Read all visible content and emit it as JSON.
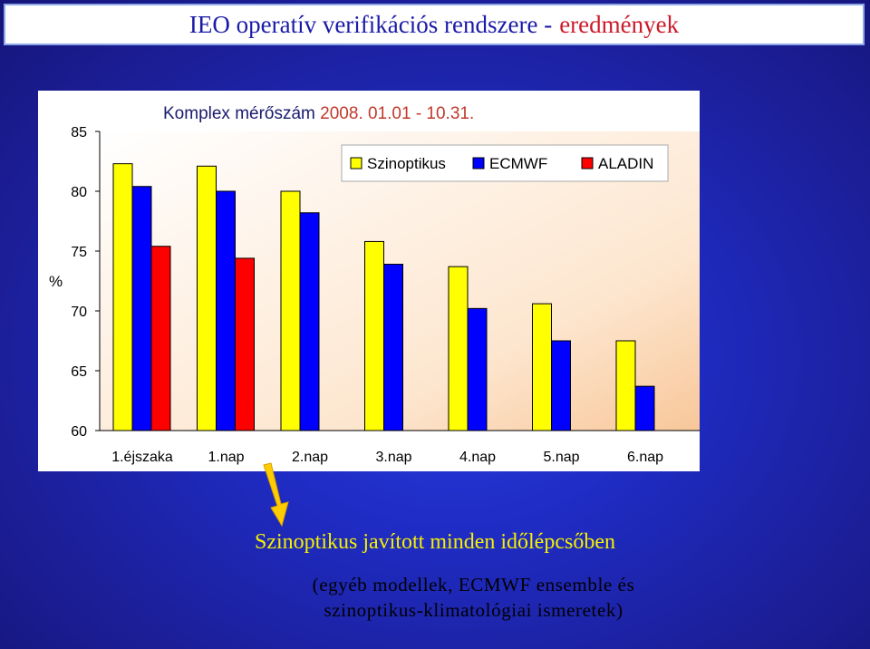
{
  "slide": {
    "title_main": "IEO operatív verifikációs rendszere -",
    "title_accent": "eredmények",
    "conclusion": "Szinoptikus javított minden időlépcsőben",
    "note_line1": "(egyéb modellek, ECMWF ensemble és",
    "note_line2": "szinoptikus-klimatológiai ismeretek)"
  },
  "chart_data": {
    "type": "bar",
    "title": "Komplex mérőszám 2008. 01.01 - 10.31.",
    "title_colors": {
      "text": "#1a1a6e",
      "dates": "#c0392b"
    },
    "ylabel": "%",
    "xlabel": "",
    "ylim": [
      60,
      85
    ],
    "yticks": [
      60,
      65,
      70,
      75,
      80,
      85
    ],
    "grid": false,
    "legend_position": "top-right",
    "categories": [
      "1.éjszaka",
      "1.nap",
      "2.nap",
      "3.nap",
      "4.nap",
      "5.nap",
      "6.nap"
    ],
    "series": [
      {
        "name": "Szinoptikus",
        "color": "#ffff00",
        "values": [
          82.3,
          82.1,
          80.0,
          75.8,
          73.7,
          70.6,
          67.5
        ]
      },
      {
        "name": "ECMWF",
        "color": "#0000ff",
        "values": [
          80.4,
          80.0,
          78.2,
          73.9,
          70.2,
          67.5,
          63.7
        ]
      },
      {
        "name": "ALADIN",
        "color": "#ff0000",
        "values": [
          75.4,
          74.4,
          null,
          null,
          null,
          null,
          null
        ]
      }
    ]
  }
}
